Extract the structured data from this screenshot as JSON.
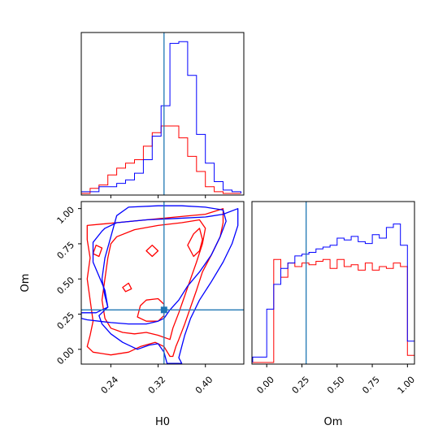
{
  "chart_data": {
    "type": "corner",
    "colors": {
      "run_a": "#0000ff",
      "run_b": "#ff0000",
      "truth": "#1f77b4"
    },
    "truth": {
      "H0": 0.33,
      "Om": 0.28
    },
    "labels": {
      "H0": "H0",
      "Om": "Om"
    },
    "ranges": {
      "H0": [
        0.19,
        0.465
      ],
      "Om": [
        -0.105,
        1.05
      ]
    },
    "ticks": {
      "H0": [
        0.24,
        0.32,
        0.4
      ],
      "H0_tick_labels": [
        "0.24",
        "0.32",
        "0.40"
      ],
      "Om": [
        0.0,
        0.25,
        0.5,
        0.75,
        1.0
      ],
      "Om_tick_labels": [
        "0.00",
        "0.25",
        "0.50",
        "0.75",
        "1.00"
      ]
    },
    "hist_H0": {
      "bin_edges": [
        0.19,
        0.205,
        0.22,
        0.235,
        0.25,
        0.265,
        0.28,
        0.295,
        0.31,
        0.325,
        0.34,
        0.355,
        0.37,
        0.385,
        0.4,
        0.415,
        0.43,
        0.445,
        0.46
      ],
      "blue_counts": [
        1,
        1,
        4,
        4,
        6,
        8,
        12,
        20,
        34,
        52,
        89,
        90,
        70,
        35,
        18,
        7,
        2,
        1
      ],
      "red_counts": [
        0,
        3,
        5,
        11,
        15,
        18,
        20,
        28,
        36,
        40,
        40,
        33,
        22,
        13,
        4,
        1,
        0,
        0
      ]
    },
    "hist_Om": {
      "bin_edges": [
        -0.1,
        -0.05,
        0.0,
        0.05,
        0.1,
        0.15,
        0.2,
        0.25,
        0.3,
        0.35,
        0.4,
        0.45,
        0.5,
        0.55,
        0.6,
        0.65,
        0.7,
        0.75,
        0.8,
        0.85,
        0.9,
        0.95,
        1.0,
        1.05
      ],
      "blue_counts": [
        3,
        3,
        30,
        44,
        53,
        56,
        60,
        61,
        62,
        64,
        65,
        66,
        70,
        69,
        71,
        68,
        67,
        72,
        70,
        76,
        78,
        66,
        12
      ],
      "red_counts": [
        0,
        0,
        0,
        58,
        48,
        56,
        54,
        56,
        55,
        57,
        58,
        53,
        58,
        54,
        55,
        52,
        56,
        52,
        54,
        53,
        56,
        54,
        4
      ]
    },
    "contours_blue": [
      [
        [
          0.19,
          0.22
        ],
        [
          0.2,
          0.21
        ],
        [
          0.22,
          0.2
        ],
        [
          0.24,
          0.19
        ],
        [
          0.27,
          0.18
        ],
        [
          0.3,
          0.18
        ],
        [
          0.32,
          0.2
        ],
        [
          0.33,
          0.22
        ],
        [
          0.34,
          0.28
        ],
        [
          0.355,
          0.35
        ],
        [
          0.37,
          0.45
        ],
        [
          0.39,
          0.55
        ],
        [
          0.41,
          0.67
        ],
        [
          0.425,
          0.8
        ],
        [
          0.435,
          0.91
        ],
        [
          0.43,
          0.99
        ],
        [
          0.4,
          1.01
        ],
        [
          0.36,
          1.02
        ],
        [
          0.32,
          1.02
        ],
        [
          0.27,
          1.01
        ],
        [
          0.25,
          0.95
        ],
        [
          0.24,
          0.8
        ],
        [
          0.23,
          0.65
        ],
        [
          0.225,
          0.5
        ],
        [
          0.23,
          0.38
        ],
        [
          0.235,
          0.3
        ],
        [
          0.215,
          0.26
        ],
        [
          0.19,
          0.26
        ]
      ],
      [
        [
          0.23,
          0.86
        ],
        [
          0.25,
          0.9
        ],
        [
          0.3,
          0.92
        ],
        [
          0.35,
          0.93
        ],
        [
          0.4,
          0.94
        ],
        [
          0.43,
          0.96
        ],
        [
          0.455,
          1.0
        ],
        [
          0.455,
          0.88
        ],
        [
          0.445,
          0.75
        ],
        [
          0.43,
          0.62
        ],
        [
          0.41,
          0.48
        ],
        [
          0.39,
          0.35
        ],
        [
          0.375,
          0.22
        ],
        [
          0.365,
          0.1
        ],
        [
          0.36,
          0.02
        ],
        [
          0.355,
          -0.06
        ],
        [
          0.36,
          -0.1
        ],
        [
          0.335,
          -0.1
        ],
        [
          0.33,
          -0.02
        ],
        [
          0.32,
          0.04
        ],
        [
          0.305,
          0.03
        ],
        [
          0.285,
          0.0
        ],
        [
          0.26,
          0.05
        ],
        [
          0.24,
          0.11
        ],
        [
          0.225,
          0.18
        ],
        [
          0.22,
          0.24
        ],
        [
          0.235,
          0.3
        ],
        [
          0.23,
          0.42
        ],
        [
          0.22,
          0.52
        ],
        [
          0.21,
          0.62
        ],
        [
          0.21,
          0.76
        ],
        [
          0.225,
          0.84
        ]
      ]
    ],
    "contours_red": [
      [
        [
          0.2,
          0.88
        ],
        [
          0.25,
          0.9
        ],
        [
          0.3,
          0.92
        ],
        [
          0.35,
          0.94
        ],
        [
          0.4,
          0.96
        ],
        [
          0.43,
          1.0
        ],
        [
          0.43,
          0.9
        ],
        [
          0.425,
          0.8
        ],
        [
          0.41,
          0.67
        ],
        [
          0.395,
          0.55
        ],
        [
          0.385,
          0.42
        ],
        [
          0.375,
          0.3
        ],
        [
          0.365,
          0.18
        ],
        [
          0.355,
          0.07
        ],
        [
          0.35,
          0.02
        ],
        [
          0.345,
          -0.05
        ],
        [
          0.34,
          -0.05
        ],
        [
          0.33,
          0.02
        ],
        [
          0.315,
          0.05
        ],
        [
          0.29,
          0.02
        ],
        [
          0.27,
          -0.02
        ],
        [
          0.24,
          -0.04
        ],
        [
          0.21,
          -0.02
        ],
        [
          0.2,
          0.02
        ],
        [
          0.205,
          0.1
        ],
        [
          0.21,
          0.2
        ],
        [
          0.205,
          0.35
        ],
        [
          0.2,
          0.5
        ],
        [
          0.205,
          0.65
        ],
        [
          0.2,
          0.78
        ]
      ],
      [
        [
          0.25,
          0.8
        ],
        [
          0.28,
          0.85
        ],
        [
          0.32,
          0.88
        ],
        [
          0.36,
          0.9
        ],
        [
          0.39,
          0.92
        ],
        [
          0.4,
          0.86
        ],
        [
          0.395,
          0.75
        ],
        [
          0.385,
          0.62
        ],
        [
          0.375,
          0.5
        ],
        [
          0.365,
          0.38
        ],
        [
          0.355,
          0.26
        ],
        [
          0.345,
          0.15
        ],
        [
          0.34,
          0.07
        ],
        [
          0.32,
          0.1
        ],
        [
          0.3,
          0.12
        ],
        [
          0.28,
          0.11
        ],
        [
          0.26,
          0.12
        ],
        [
          0.24,
          0.15
        ],
        [
          0.23,
          0.22
        ],
        [
          0.225,
          0.35
        ],
        [
          0.23,
          0.5
        ],
        [
          0.235,
          0.65
        ],
        [
          0.24,
          0.75
        ]
      ],
      [
        [
          0.285,
          0.23
        ],
        [
          0.3,
          0.2
        ],
        [
          0.32,
          0.2
        ],
        [
          0.33,
          0.24
        ],
        [
          0.33,
          0.32
        ],
        [
          0.32,
          0.36
        ],
        [
          0.3,
          0.35
        ],
        [
          0.29,
          0.31
        ]
      ],
      [
        [
          0.37,
          0.74
        ],
        [
          0.38,
          0.82
        ],
        [
          0.39,
          0.86
        ],
        [
          0.395,
          0.78
        ],
        [
          0.39,
          0.7
        ],
        [
          0.38,
          0.66
        ]
      ],
      [
        [
          0.21,
          0.68
        ],
        [
          0.215,
          0.74
        ],
        [
          0.225,
          0.72
        ],
        [
          0.22,
          0.66
        ]
      ],
      [
        [
          0.3,
          0.7
        ],
        [
          0.31,
          0.74
        ],
        [
          0.32,
          0.7
        ],
        [
          0.31,
          0.66
        ]
      ],
      [
        [
          0.26,
          0.44
        ],
        [
          0.27,
          0.47
        ],
        [
          0.275,
          0.43
        ],
        [
          0.265,
          0.41
        ]
      ]
    ]
  }
}
